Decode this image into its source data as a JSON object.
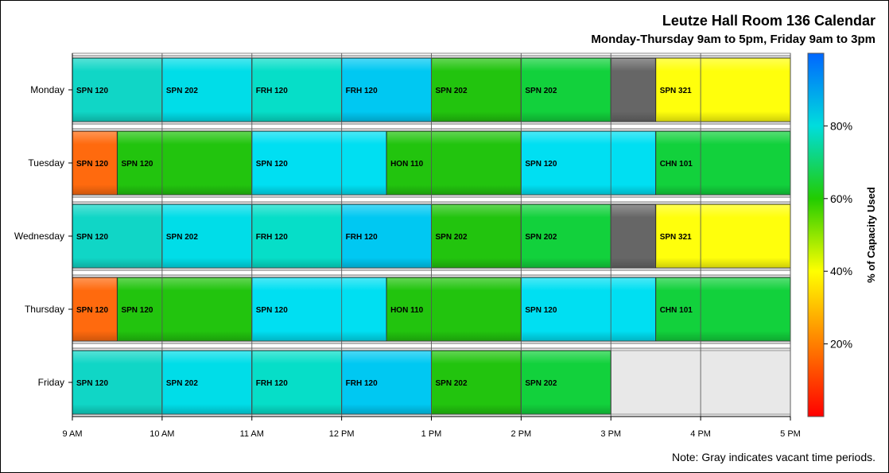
{
  "chart_data": {
    "type": "bar",
    "title": "Leutze Hall Room 136 Calendar",
    "subtitle": "Monday-Thursday 9am to 5pm, Friday 9am to 3pm",
    "note": "Note: Gray indicates vacant time periods.",
    "x_ticks": [
      {
        "hour": 9,
        "label": "9 AM"
      },
      {
        "hour": 10,
        "label": "10 AM"
      },
      {
        "hour": 11,
        "label": "11 AM"
      },
      {
        "hour": 12,
        "label": "12 PM"
      },
      {
        "hour": 13,
        "label": "1 PM"
      },
      {
        "hour": 14,
        "label": "2 PM"
      },
      {
        "hour": 15,
        "label": "3 PM"
      },
      {
        "hour": 16,
        "label": "4 PM"
      },
      {
        "hour": 17,
        "label": "5 PM"
      }
    ],
    "xlim": [
      9,
      17
    ],
    "colorbar": {
      "label": "% of Capacity Used",
      "range": [
        0,
        100
      ],
      "ticks": [
        {
          "value": 20,
          "label": "20%"
        },
        {
          "value": 40,
          "label": "40%"
        },
        {
          "value": 60,
          "label": "60%"
        },
        {
          "value": 80,
          "label": "80%"
        }
      ],
      "gradient": [
        "#ff0000",
        "#ff7f00",
        "#ffff00",
        "#22cc00",
        "#00dddd",
        "#0066ff"
      ]
    },
    "vacant_color": "#666666",
    "outside_hours_color": "#e8e8e8",
    "days": [
      {
        "day": "Monday",
        "end": 17,
        "blocks": [
          {
            "start": 9,
            "end": 10,
            "label": "SPN 120",
            "color": "#10d6c6"
          },
          {
            "start": 10,
            "end": 11,
            "label": "SPN 202",
            "color": "#00dde8"
          },
          {
            "start": 11,
            "end": 12,
            "label": "FRH 120",
            "color": "#06dec8"
          },
          {
            "start": 12,
            "end": 13,
            "label": "FRH 120",
            "color": "#00c8f2"
          },
          {
            "start": 13,
            "end": 14,
            "label": "SPN 202",
            "color": "#22c40e"
          },
          {
            "start": 14,
            "end": 15,
            "label": "SPN 202",
            "color": "#12d13c"
          },
          {
            "start": 15,
            "end": 15.5,
            "label": "",
            "color": "#666666"
          },
          {
            "start": 15.5,
            "end": 17,
            "label": "SPN 321",
            "color": "#ffff0c"
          }
        ]
      },
      {
        "day": "Tuesday",
        "end": 17,
        "blocks": [
          {
            "start": 9,
            "end": 9.5,
            "label": "SPN 120",
            "color": "#ff6a0e"
          },
          {
            "start": 9.5,
            "end": 11,
            "label": "SPN 120",
            "color": "#22c40e"
          },
          {
            "start": 11,
            "end": 12.5,
            "label": "SPN 120",
            "color": "#00dff2"
          },
          {
            "start": 12.5,
            "end": 14,
            "label": "HON 110",
            "color": "#22c40e"
          },
          {
            "start": 14,
            "end": 15.5,
            "label": "SPN 120",
            "color": "#00dff2"
          },
          {
            "start": 15.5,
            "end": 17,
            "label": "CHN 101",
            "color": "#12d13c"
          }
        ]
      },
      {
        "day": "Wednesday",
        "end": 17,
        "blocks": [
          {
            "start": 9,
            "end": 10,
            "label": "SPN 120",
            "color": "#10d6c6"
          },
          {
            "start": 10,
            "end": 11,
            "label": "SPN 202",
            "color": "#00dde8"
          },
          {
            "start": 11,
            "end": 12,
            "label": "FRH 120",
            "color": "#06dec8"
          },
          {
            "start": 12,
            "end": 13,
            "label": "FRH 120",
            "color": "#00c8f2"
          },
          {
            "start": 13,
            "end": 14,
            "label": "SPN 202",
            "color": "#22c40e"
          },
          {
            "start": 14,
            "end": 15,
            "label": "SPN 202",
            "color": "#12d13c"
          },
          {
            "start": 15,
            "end": 15.5,
            "label": "",
            "color": "#666666"
          },
          {
            "start": 15.5,
            "end": 17,
            "label": "SPN 321",
            "color": "#ffff0c"
          }
        ]
      },
      {
        "day": "Thursday",
        "end": 17,
        "blocks": [
          {
            "start": 9,
            "end": 9.5,
            "label": "SPN 120",
            "color": "#ff6a0e"
          },
          {
            "start": 9.5,
            "end": 11,
            "label": "SPN 120",
            "color": "#22c40e"
          },
          {
            "start": 11,
            "end": 12.5,
            "label": "SPN 120",
            "color": "#00dff2"
          },
          {
            "start": 12.5,
            "end": 14,
            "label": "HON 110",
            "color": "#22c40e"
          },
          {
            "start": 14,
            "end": 15.5,
            "label": "SPN 120",
            "color": "#00dff2"
          },
          {
            "start": 15.5,
            "end": 17,
            "label": "CHN 101",
            "color": "#12d13c"
          }
        ]
      },
      {
        "day": "Friday",
        "end": 15,
        "blocks": [
          {
            "start": 9,
            "end": 10,
            "label": "SPN 120",
            "color": "#10d6c6"
          },
          {
            "start": 10,
            "end": 11,
            "label": "SPN 202",
            "color": "#00dde8"
          },
          {
            "start": 11,
            "end": 12,
            "label": "FRH 120",
            "color": "#06dec8"
          },
          {
            "start": 12,
            "end": 13,
            "label": "FRH 120",
            "color": "#00c8f2"
          },
          {
            "start": 13,
            "end": 14,
            "label": "SPN 202",
            "color": "#22c40e"
          },
          {
            "start": 14,
            "end": 15,
            "label": "SPN 202",
            "color": "#12d13c"
          }
        ]
      }
    ]
  }
}
